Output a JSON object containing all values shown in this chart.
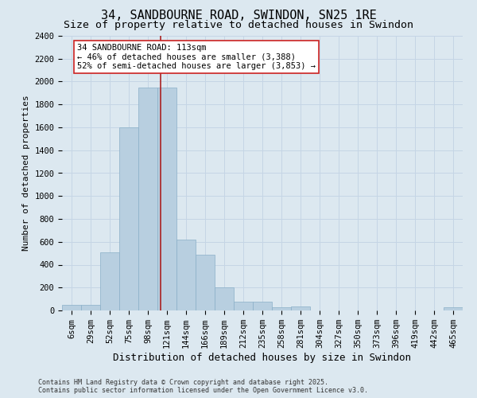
{
  "title": "34, SANDBOURNE ROAD, SWINDON, SN25 1RE",
  "subtitle": "Size of property relative to detached houses in Swindon",
  "xlabel": "Distribution of detached houses by size in Swindon",
  "ylabel": "Number of detached properties",
  "footer_line1": "Contains HM Land Registry data © Crown copyright and database right 2025.",
  "footer_line2": "Contains public sector information licensed under the Open Government Licence v3.0.",
  "categories": [
    "6sqm",
    "29sqm",
    "52sqm",
    "75sqm",
    "98sqm",
    "121sqm",
    "144sqm",
    "166sqm",
    "189sqm",
    "212sqm",
    "235sqm",
    "258sqm",
    "281sqm",
    "304sqm",
    "327sqm",
    "350sqm",
    "373sqm",
    "396sqm",
    "419sqm",
    "442sqm",
    "465sqm"
  ],
  "values": [
    50,
    50,
    510,
    1600,
    1950,
    1950,
    620,
    490,
    200,
    75,
    75,
    25,
    35,
    0,
    0,
    0,
    0,
    0,
    0,
    0,
    25
  ],
  "bar_color": "#b8cfe0",
  "bar_edge_color": "#8aafc8",
  "grid_color": "#c5d5e5",
  "background_color": "#dce8f0",
  "vline_x": 4.65,
  "vline_color": "#aa2222",
  "annotation_text": "34 SANDBOURNE ROAD: 113sqm\n← 46% of detached houses are smaller (3,388)\n52% of semi-detached houses are larger (3,853) →",
  "annotation_box_facecolor": "#ffffff",
  "annotation_box_edgecolor": "#cc2222",
  "ylim": [
    0,
    2400
  ],
  "yticks": [
    0,
    200,
    400,
    600,
    800,
    1000,
    1200,
    1400,
    1600,
    1800,
    2000,
    2200,
    2400
  ],
  "title_fontsize": 11,
  "subtitle_fontsize": 9.5,
  "ylabel_fontsize": 8,
  "xlabel_fontsize": 9,
  "tick_fontsize": 7.5,
  "annotation_fontsize": 7.5,
  "footer_fontsize": 6
}
